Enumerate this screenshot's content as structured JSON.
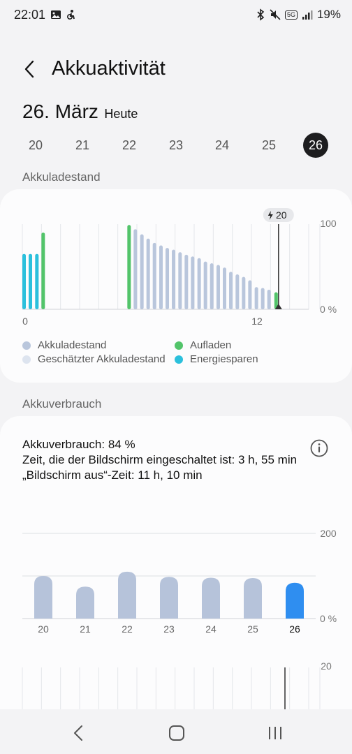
{
  "status_bar": {
    "time": "22:01",
    "network": "5G",
    "battery": "19%"
  },
  "header": {
    "title": "Akkuaktivität"
  },
  "date": {
    "main": "26. März",
    "sub": "Heute"
  },
  "days": [
    {
      "label": "20",
      "selected": false
    },
    {
      "label": "21",
      "selected": false
    },
    {
      "label": "22",
      "selected": false
    },
    {
      "label": "23",
      "selected": false
    },
    {
      "label": "24",
      "selected": false
    },
    {
      "label": "25",
      "selected": false
    },
    {
      "label": "26",
      "selected": true
    }
  ],
  "battery_level": {
    "section_label": "Akkuladestand",
    "current_badge": "20",
    "y_top_label": "100",
    "y_bottom_label": "0 %",
    "x_labels": [
      "0",
      "12"
    ],
    "legend": [
      {
        "label": "Akkuladestand",
        "color": "#b9c6dc"
      },
      {
        "label": "Aufladen",
        "color": "#52c46a"
      },
      {
        "label": "Geschätzter Akkuladestand",
        "color": "#dde4ef"
      },
      {
        "label": "Energiesparen",
        "color": "#2bc0dc"
      }
    ]
  },
  "usage": {
    "section_label": "Akkuverbrauch",
    "line1": "Akkuverbrauch: 84 %",
    "line2": "Zeit, die der Bildschirm eingeschaltet ist: 3 h, 55 min",
    "line3": "„Bildschirm aus“-Zeit: 11 h, 10 min",
    "y_top_label": "200",
    "y_bottom_label": "0 %",
    "third_chart_top_label": "20"
  },
  "colors": {
    "accent_blue": "#2f8ef0",
    "bar_grey": "#b6c3da",
    "charging_green": "#52c46a",
    "power_saving": "#2bc0dc"
  },
  "chart_data": [
    {
      "type": "bar",
      "description_label": "Akkuladestand",
      "x_tick_labels": [
        "0",
        "12"
      ],
      "ylim": [
        0,
        100
      ],
      "series": [
        {
          "name": "Energiesparen",
          "x": [
            0,
            0.33,
            0.67
          ],
          "values": [
            65,
            65,
            65
          ]
        },
        {
          "name": "Aufladen",
          "x": [
            1,
            5.5,
            13.2
          ],
          "values": [
            90,
            99,
            20
          ]
        },
        {
          "name": "Akkuladestand",
          "x": [
            5.83,
            6.17,
            6.5,
            6.83,
            7.17,
            7.5,
            7.83,
            8.17,
            8.5,
            8.83,
            9.17,
            9.5,
            9.83,
            10.17,
            10.5,
            10.83,
            11.17,
            11.5,
            11.83,
            12.17,
            12.5,
            12.83
          ],
          "values": [
            94,
            88,
            83,
            78,
            75,
            72,
            70,
            67,
            64,
            62,
            60,
            56,
            54,
            52,
            49,
            44,
            41,
            38,
            34,
            26,
            25,
            23
          ]
        }
      ]
    },
    {
      "type": "bar",
      "description_label": "Akkuverbrauch",
      "categories": [
        "20",
        "21",
        "22",
        "23",
        "24",
        "25",
        "26"
      ],
      "values": [
        100,
        75,
        110,
        98,
        96,
        95,
        84
      ],
      "ylim": [
        0,
        200
      ]
    }
  ]
}
